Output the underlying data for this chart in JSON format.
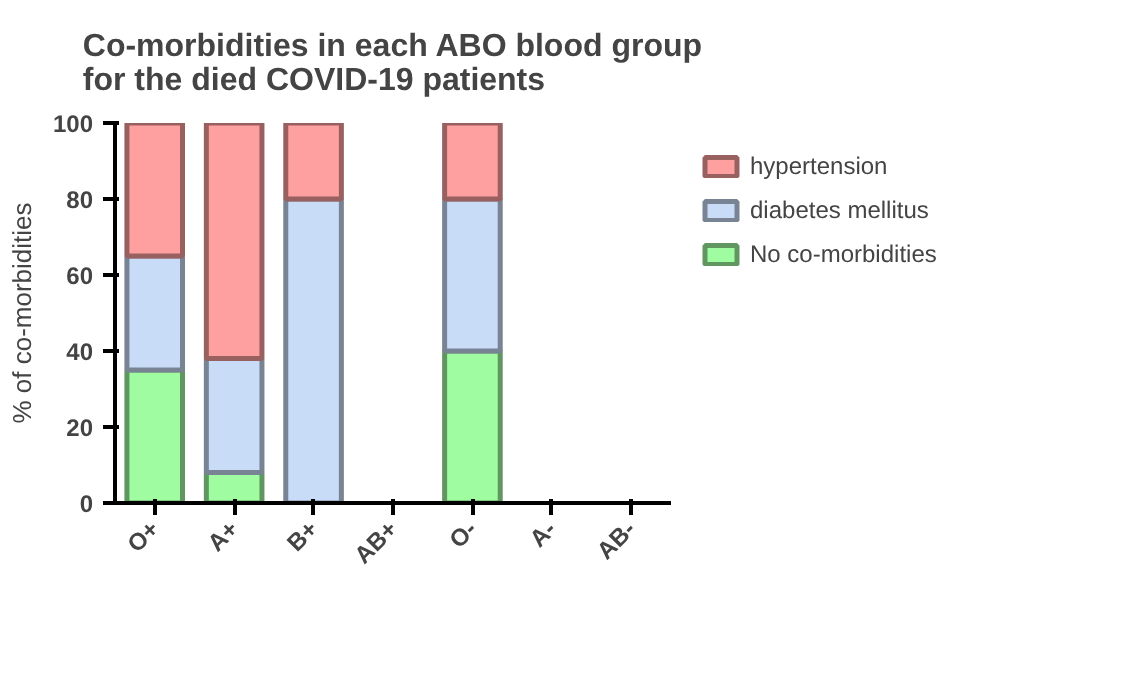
{
  "chart_data": {
    "type": "bar",
    "title": "Co-morbidities in each ABO blood group\nfor the died COVID-19 patients",
    "ylabel": "% of co-morbidities",
    "categories": [
      "O+",
      "A+",
      "B+",
      "AB+",
      "O-",
      "A-",
      "AB-"
    ],
    "stacked": true,
    "ylim": [
      0,
      100
    ],
    "yticks": [
      0,
      20,
      40,
      60,
      80,
      100
    ],
    "grid": false,
    "legend": "right",
    "series": [
      {
        "name": "No co-morbidities",
        "color": "#a0fca0",
        "values": [
          35,
          8,
          0,
          null,
          40,
          null,
          null
        ]
      },
      {
        "name": "diabetes mellitus",
        "color": "#c8dcf8",
        "values": [
          30,
          30,
          80,
          null,
          40,
          null,
          null
        ]
      },
      {
        "name": "hypertension",
        "color": "#ffa0a0",
        "values": [
          35,
          62,
          20,
          null,
          20,
          null,
          null
        ]
      }
    ]
  }
}
